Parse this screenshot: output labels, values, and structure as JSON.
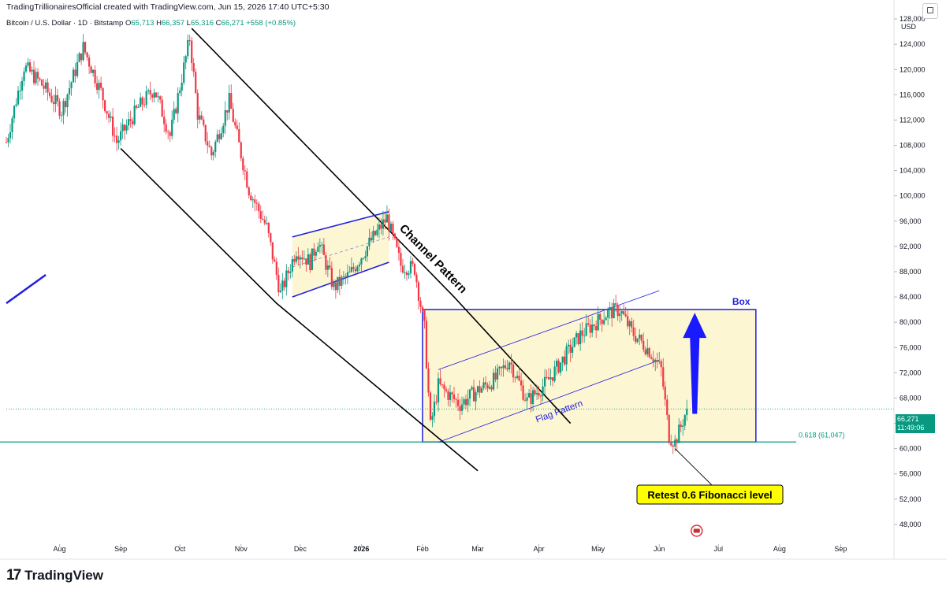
{
  "header": {
    "credit": "TradingTrillionairesOfficial created with TradingView.com, Jun 15, 2026 17:40 UTC+5:30"
  },
  "symbol_line": {
    "name": "Bitcoin / U.S. Dollar · 1D · Bitstamp",
    "open_label": "O",
    "open": "65,713",
    "high_label": "H",
    "high": "66,357",
    "low_label": "L",
    "low": "65,316",
    "close_label": "C",
    "close": "66,271",
    "change": "+558 (+0.85%)"
  },
  "axis": {
    "currency": "USD",
    "last_price": "66,271",
    "countdown": "11:49:06"
  },
  "footer": {
    "logo_glyph": "17",
    "brand": "TradingView"
  },
  "colors": {
    "up": "#089981",
    "down": "#f23645",
    "pattern_line": "#1e1ee0",
    "box_fill": "#fdf6d2",
    "fib_line": "#089981",
    "callout_fill": "#ffff00",
    "arrow": "#1a1aff"
  },
  "chart_data": {
    "type": "candlestick",
    "title": "Bitcoin / U.S. Dollar · 1D · Bitstamp",
    "ylim": [
      45000,
      131000
    ],
    "y_ticks": [
      48000,
      52000,
      56000,
      60000,
      64000,
      68000,
      72000,
      76000,
      80000,
      84000,
      88000,
      92000,
      96000,
      100000,
      104000,
      108000,
      112000,
      116000,
      120000,
      124000,
      128000
    ],
    "y_tick_labels": [
      "48,000",
      "52,000",
      "56,000",
      "60,000",
      "64,000",
      "68,000",
      "72,000",
      "76,000",
      "80,000",
      "84,000",
      "88,000",
      "92,000",
      "96,000",
      "100,000",
      "104,000",
      "108,000",
      "112,000",
      "116,000",
      "120,000",
      "124,000",
      "128,000"
    ],
    "x_range": [
      "2025-07-05",
      "2026-09-28"
    ],
    "x_ticks": [
      "2025-08-01",
      "2025-09-01",
      "2025-10-01",
      "2025-11-01",
      "2025-12-01",
      "2026-01-01",
      "2026-02-01",
      "2026-03-01",
      "2026-04-01",
      "2026-05-01",
      "2026-06-01",
      "2026-07-01",
      "2026-08-01",
      "2026-09-01"
    ],
    "x_tick_labels": [
      "Aug",
      "Sep",
      "Oct",
      "Nov",
      "Dec",
      "2026",
      "Feb",
      "Mar",
      "Apr",
      "May",
      "Jun",
      "Jul",
      "Aug",
      "Sep"
    ],
    "price_path": [
      [
        "2025-07-05",
        108500
      ],
      [
        "2025-07-14",
        120500
      ],
      [
        "2025-07-22",
        118000
      ],
      [
        "2025-08-02",
        113500
      ],
      [
        "2025-08-13",
        123500
      ],
      [
        "2025-08-22",
        116500
      ],
      [
        "2025-08-30",
        108500
      ],
      [
        "2025-09-10",
        114000
      ],
      [
        "2025-09-18",
        117000
      ],
      [
        "2025-09-26",
        109500
      ],
      [
        "2025-10-06",
        125000
      ],
      [
        "2025-10-10",
        113000
      ],
      [
        "2025-10-17",
        106500
      ],
      [
        "2025-10-26",
        115000
      ],
      [
        "2025-11-05",
        101000
      ],
      [
        "2025-11-14",
        95000
      ],
      [
        "2025-11-21",
        84500
      ],
      [
        "2025-11-29",
        91500
      ],
      [
        "2025-12-06",
        89500
      ],
      [
        "2025-12-10",
        93000
      ],
      [
        "2025-12-18",
        85500
      ],
      [
        "2025-12-26",
        87500
      ],
      [
        "2026-01-05",
        92500
      ],
      [
        "2026-01-14",
        96500
      ],
      [
        "2026-01-21",
        89000
      ],
      [
        "2026-01-28",
        88500
      ],
      [
        "2026-02-02",
        79000
      ],
      [
        "2026-02-05",
        63500
      ],
      [
        "2026-02-09",
        70000
      ],
      [
        "2026-02-20",
        67000
      ],
      [
        "2026-02-28",
        69000
      ],
      [
        "2026-03-10",
        71000
      ],
      [
        "2026-03-17",
        74000
      ],
      [
        "2026-03-26",
        67500
      ],
      [
        "2026-04-05",
        70500
      ],
      [
        "2026-04-14",
        74500
      ],
      [
        "2026-04-22",
        78000
      ],
      [
        "2026-05-06",
        81500
      ],
      [
        "2026-05-12",
        82000
      ],
      [
        "2026-05-18",
        78500
      ],
      [
        "2026-05-27",
        75500
      ],
      [
        "2026-06-02",
        72500
      ],
      [
        "2026-06-06",
        62000
      ],
      [
        "2026-06-09",
        61000
      ],
      [
        "2026-06-12",
        63500
      ],
      [
        "2026-06-15",
        66271
      ]
    ],
    "annotations": {
      "channel_label": "Channel Pattern",
      "flag_label": "Flag Pattern",
      "box_label": "Box",
      "fib_label": "0.618 (61,047)",
      "fib_level": 61047,
      "callout": "Retest 0.6 Fibonacci  level",
      "box": {
        "from": "2026-02-01",
        "to": "2026-07-20",
        "bottom": 61047,
        "top": 82000
      },
      "channel_upper": [
        [
          "2025-10-07",
          126500
        ],
        [
          "2026-02-17",
          84000
        ],
        [
          "2026-04-17",
          64000
        ]
      ],
      "channel_lower": [
        [
          "2025-09-01",
          107500
        ],
        [
          "2025-11-19",
          83000
        ],
        [
          "2026-03-01",
          56500
        ]
      ],
      "bear_flag_upper": [
        [
          "2025-11-27",
          93500
        ],
        [
          "2026-01-15",
          97500
        ]
      ],
      "bear_flag_lower": [
        [
          "2025-11-27",
          84000
        ],
        [
          "2026-01-15",
          89500
        ]
      ],
      "bull_flag_upper": [
        [
          "2026-02-09",
          72500
        ],
        [
          "2026-06-01",
          85000
        ]
      ],
      "bull_flag_lower": [
        [
          "2026-02-09",
          61000
        ],
        [
          "2026-06-01",
          74000
        ]
      ],
      "arrow": {
        "date": "2026-06-19",
        "from": 65500,
        "to": 81500
      },
      "left_segment": [
        [
          "2025-07-05",
          83000
        ],
        [
          "2025-07-25",
          87500
        ]
      ]
    }
  }
}
